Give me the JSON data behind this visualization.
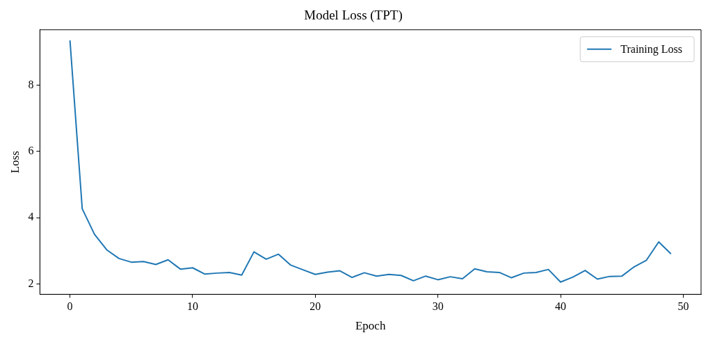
{
  "chart_data": {
    "type": "line",
    "title": "Model Loss (TPT)",
    "xlabel": "Epoch",
    "ylabel": "Loss",
    "x": [
      0,
      1,
      2,
      3,
      4,
      5,
      6,
      7,
      8,
      9,
      10,
      11,
      12,
      13,
      14,
      15,
      16,
      17,
      18,
      19,
      20,
      21,
      22,
      23,
      24,
      25,
      26,
      27,
      28,
      29,
      30,
      31,
      32,
      33,
      34,
      35,
      36,
      37,
      38,
      39,
      40,
      41,
      42,
      43,
      44,
      45,
      46,
      47,
      48,
      49
    ],
    "series": [
      {
        "name": "Training Loss",
        "color": "#1f77b4",
        "values": [
          9.35,
          4.27,
          3.5,
          3.03,
          2.77,
          2.66,
          2.68,
          2.59,
          2.73,
          2.45,
          2.49,
          2.3,
          2.33,
          2.35,
          2.27,
          2.97,
          2.75,
          2.9,
          2.57,
          2.43,
          2.29,
          2.36,
          2.4,
          2.2,
          2.34,
          2.24,
          2.29,
          2.26,
          2.1,
          2.24,
          2.13,
          2.22,
          2.16,
          2.46,
          2.37,
          2.35,
          2.19,
          2.33,
          2.35,
          2.44,
          2.06,
          2.21,
          2.41,
          2.15,
          2.23,
          2.24,
          2.52,
          2.72,
          3.27,
          2.91
        ]
      }
    ],
    "xlim": [
      -2.45,
      51.45
    ],
    "xticks": [
      0,
      10,
      20,
      30,
      40,
      50
    ],
    "ylim": [
      1.69,
      9.67
    ],
    "yticks": [
      2,
      4,
      6,
      8
    ],
    "grid": false,
    "legend": "top right",
    "marker": "none",
    "line_style": "solid"
  }
}
